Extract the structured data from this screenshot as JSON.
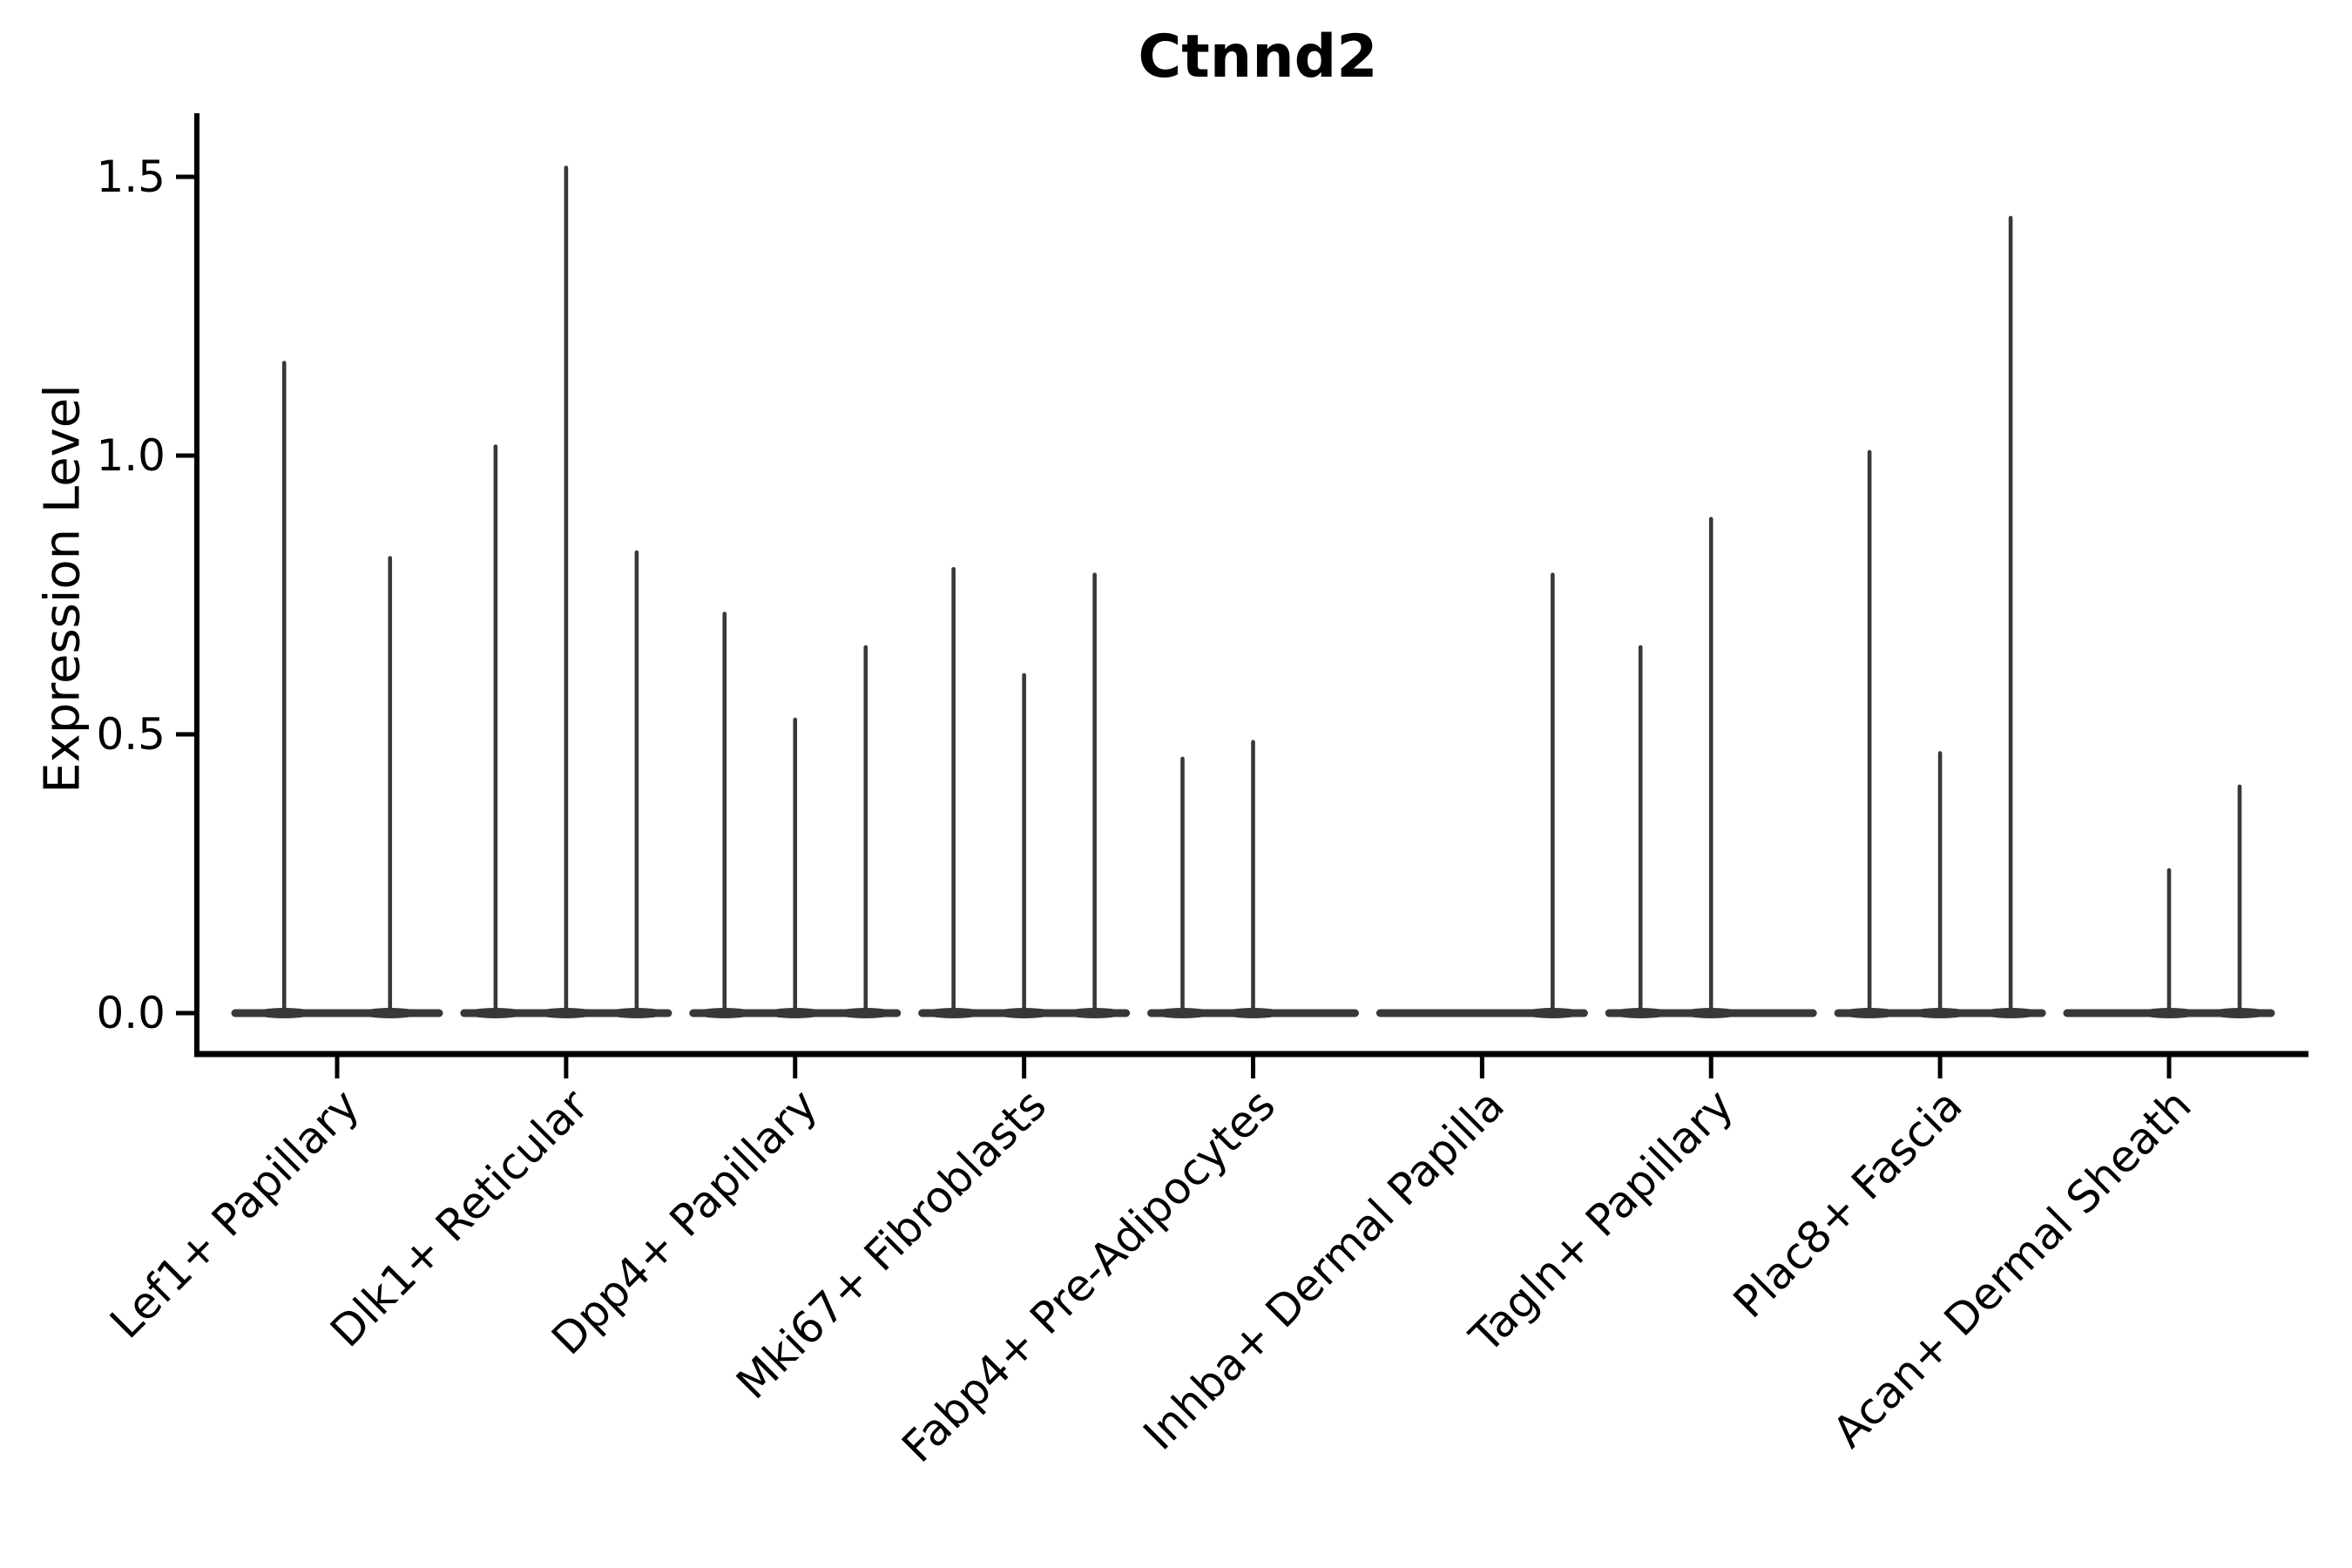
{
  "chart_data": {
    "type": "violin",
    "title": "Ctnnd2",
    "xlabel": "",
    "ylabel": "Expression Level",
    "yticks": [
      "0.0",
      "0.5",
      "1.0",
      "1.5"
    ],
    "ylim": [
      -0.07,
      1.61
    ],
    "grid": false,
    "legend_position": "none",
    "background_color": "#ffffff",
    "axis_color": "#000000",
    "text_color": "#000000",
    "violin_color": "#383838",
    "categories": [
      "Lef1+ Papillary",
      "Dlk1+ Reticular",
      "Dpp4+ Papillary",
      "Mki67+ Fibroblasts",
      "Fabp4+ Pre-Adipocytes",
      "Inhba+ Dermal Papilla",
      "Tagln+ Papillary",
      "Plac8+ Fascia",
      "Acan+ Dermal Sheath"
    ],
    "series_description": "Each category contains 2-3 narrow violins that are flat at expression 0 with a thin vertical spike; listed values are the top (max expression) of each spike, 0 = flat violin with no spike.",
    "violin_spike_maxima": [
      [
        1.17,
        0.82
      ],
      [
        1.02,
        1.52,
        0.83
      ],
      [
        0.72,
        0.53,
        0.66
      ],
      [
        0.8,
        0.61,
        0.79
      ],
      [
        0.46,
        0.49,
        0
      ],
      [
        0,
        0,
        0.79
      ],
      [
        0.66,
        0.89,
        0
      ],
      [
        1.01,
        0.47,
        1.43
      ],
      [
        0,
        0.26,
        0.41
      ]
    ]
  }
}
